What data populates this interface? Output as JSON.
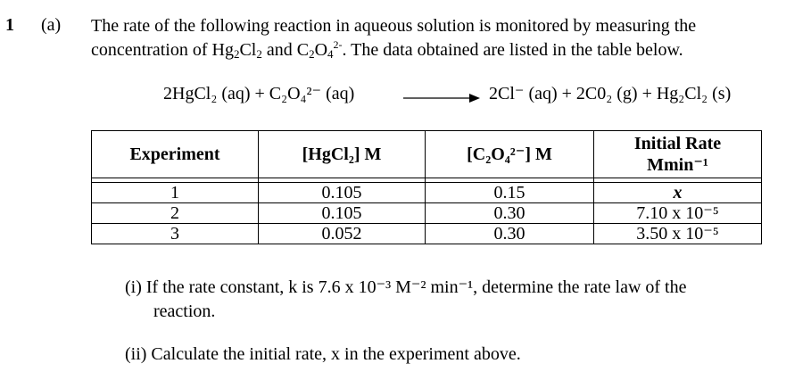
{
  "question": {
    "number": "1",
    "part": "(a)",
    "intro_line1": "The rate of the following reaction in aqueous solution is monitored by measuring the",
    "intro_line2_a": "concentration of Hg",
    "intro_line2_b": "Cl",
    "intro_line2_c": " and C",
    "intro_line2_d": "O",
    "intro_line2_e": ". The data obtained are listed in the table below."
  },
  "equation": {
    "reactants": "2HgCl₂ (aq)  +  C₂O₄²⁻ (aq)",
    "products": "2Cl⁻ (aq)  +  2C0₂ (g)  +  Hg₂Cl₂ (s)"
  },
  "table": {
    "headers": [
      "Experiment",
      "[HgCl₂] M",
      "[C₂O₄²⁻] M",
      "Initial Rate",
      "Mmin⁻¹"
    ],
    "rows": [
      [
        "1",
        "0.105",
        "0.15",
        "x"
      ],
      [
        "2",
        "0.105",
        "0.30",
        "7.10 x 10⁻⁵"
      ],
      [
        "3",
        "0.052",
        "0.30",
        "3.50 x 10⁻⁵"
      ]
    ]
  },
  "subquestions": {
    "i_line1": "(i) If the rate constant, k is 7.6 x 10⁻³ M⁻² min⁻¹, determine the rate law of the",
    "i_line2": "reaction.",
    "ii": "(ii) Calculate the initial rate, x in the experiment above."
  }
}
